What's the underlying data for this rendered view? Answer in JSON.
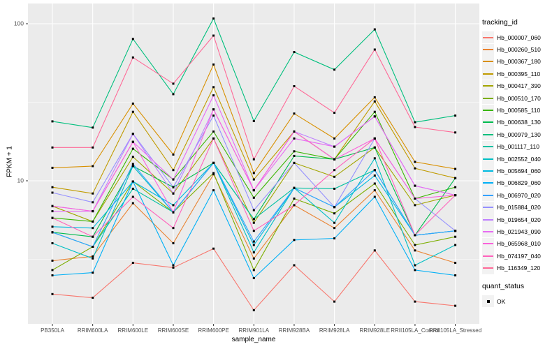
{
  "figure": {
    "y_axis_title": "FPKM + 1",
    "x_axis_title": "sample_name",
    "background": "#FFFFFF",
    "panel_background": "#EBEBEB",
    "grid_color": "#FFFFFF",
    "tick_label_color": "#4D4D4D",
    "marker_color": "#000000"
  },
  "legend": {
    "tracking_title": "tracking_id",
    "quant_title": "quant_status",
    "quant_items": [
      {
        "label": "OK",
        "marker": "black-square"
      }
    ]
  },
  "chart_data": {
    "type": "line",
    "title": "",
    "xlabel": "sample_name",
    "ylabel": "FPKM + 1",
    "y_scale": "log10",
    "ylim": [
      1.2,
      135
    ],
    "y_major_ticks": [
      100,
      10
    ],
    "y_major_tick_labels": [
      "100",
      "10"
    ],
    "y_minor_gridlines": [
      31.62,
      3.162
    ],
    "legend_position": "right",
    "grid": true,
    "point_marker": "small black square (quant_status = OK) at every vertex",
    "categories": [
      "PB350LA",
      "RRIM600LA",
      "RRIM600LE",
      "RRIM600SE",
      "RRIM600PE",
      "RRIM901LA",
      "RRIM928BA",
      "RRIM928LA",
      "RRIM928LE",
      "RRII105LA_Control",
      "RRII105LA_Stressed"
    ],
    "series": [
      {
        "name": "Hb_000007_060",
        "color": "#F8766D",
        "values": [
          1.9,
          1.8,
          3.0,
          2.8,
          3.7,
          1.5,
          2.9,
          1.7,
          3.6,
          1.7,
          1.6
        ]
      },
      {
        "name": "Hb_000260_510",
        "color": "#EA8331",
        "values": [
          3.1,
          3.3,
          7.2,
          4.0,
          11.0,
          3.2,
          7.0,
          5.0,
          8.7,
          3.6,
          3.0
        ]
      },
      {
        "name": "Hb_000367_180",
        "color": "#D89000",
        "values": [
          12.1,
          12.4,
          31.0,
          14.7,
          55.0,
          11.2,
          26.8,
          18.6,
          34.0,
          13.2,
          11.9
        ]
      },
      {
        "name": "Hb_000395_110",
        "color": "#C09B00",
        "values": [
          9.1,
          8.3,
          27.5,
          11.7,
          39.5,
          10.2,
          20.6,
          13.7,
          32.0,
          12.0,
          10.4
        ]
      },
      {
        "name": "Hb_000417_390",
        "color": "#A3A500",
        "values": [
          6.9,
          5.5,
          14.2,
          8.3,
          18.6,
          5.4,
          13.0,
          10.6,
          16.3,
          7.0,
          8.1
        ]
      },
      {
        "name": "Hb_000510_170",
        "color": "#7CAE00",
        "values": [
          2.7,
          3.8,
          9.9,
          6.3,
          11.2,
          2.7,
          7.7,
          6.2,
          9.6,
          3.9,
          4.4
        ]
      },
      {
        "name": "Hb_000585_110",
        "color": "#39B600",
        "values": [
          5.8,
          5.5,
          16.0,
          10.2,
          20.6,
          7.8,
          15.4,
          13.7,
          27.5,
          7.7,
          9.1
        ]
      },
      {
        "name": "Hb_000638_130",
        "color": "#00BB4E",
        "values": [
          4.7,
          4.4,
          12.4,
          9.1,
          13.0,
          5.7,
          14.4,
          13.7,
          16.3,
          4.5,
          10.4
        ]
      },
      {
        "name": "Hb_000979_130",
        "color": "#00BF7D",
        "values": [
          23.9,
          21.8,
          80.0,
          35.6,
          108.0,
          24.0,
          66.0,
          51.0,
          92.0,
          23.6,
          26.0
        ]
      },
      {
        "name": "Hb_001117_110",
        "color": "#00C1A3",
        "values": [
          4.7,
          3.8,
          8.9,
          6.3,
          13.0,
          5.7,
          9.0,
          8.9,
          11.7,
          4.5,
          4.8
        ]
      },
      {
        "name": "Hb_002552_040",
        "color": "#00BFC4",
        "values": [
          4.0,
          3.2,
          12.4,
          6.3,
          13.0,
          3.5,
          9.0,
          5.4,
          13.9,
          2.9,
          3.9
        ]
      },
      {
        "name": "Hb_005694_060",
        "color": "#00BAE0",
        "values": [
          5.1,
          5.0,
          9.9,
          7.0,
          13.0,
          3.9,
          9.0,
          6.8,
          10.8,
          4.5,
          4.8
        ]
      },
      {
        "name": "Hb_006829_060",
        "color": "#00B0F6",
        "values": [
          2.5,
          2.6,
          9.9,
          2.9,
          8.7,
          2.4,
          4.2,
          4.3,
          7.9,
          2.7,
          2.5
        ]
      },
      {
        "name": "Hb_006970_020",
        "color": "#35A2FF",
        "values": [
          4.7,
          3.8,
          12.8,
          6.3,
          13.0,
          4.1,
          9.0,
          6.8,
          11.7,
          4.5,
          4.8
        ]
      },
      {
        "name": "Hb_015884_020",
        "color": "#9590FF",
        "values": [
          8.4,
          7.3,
          19.9,
          9.1,
          26.0,
          6.5,
          13.0,
          6.8,
          18.6,
          7.7,
          4.8
        ]
      },
      {
        "name": "Hb_019654_020",
        "color": "#BF80FF",
        "values": [
          6.9,
          6.4,
          19.9,
          8.3,
          28.5,
          8.7,
          20.6,
          16.5,
          25.7,
          9.3,
          8.1
        ]
      },
      {
        "name": "Hb_021943_090",
        "color": "#E76BF3",
        "values": [
          6.4,
          6.4,
          17.7,
          10.2,
          35.0,
          8.7,
          18.6,
          16.5,
          25.7,
          9.3,
          8.1
        ]
      },
      {
        "name": "Hb_065968_010",
        "color": "#FA62DB",
        "values": [
          6.9,
          6.4,
          17.7,
          6.3,
          28.5,
          8.7,
          20.6,
          13.7,
          18.6,
          7.7,
          8.1
        ]
      },
      {
        "name": "Hb_074197_040",
        "color": "#FF62BC",
        "values": [
          5.8,
          4.4,
          7.9,
          5.0,
          18.6,
          4.8,
          7.0,
          11.7,
          18.6,
          4.5,
          8.1
        ]
      },
      {
        "name": "Hb_116349_120",
        "color": "#FF6A98",
        "values": [
          16.3,
          16.3,
          61.0,
          41.5,
          84.0,
          13.7,
          40.0,
          27.1,
          68.5,
          22.0,
          20.3
        ]
      }
    ]
  }
}
